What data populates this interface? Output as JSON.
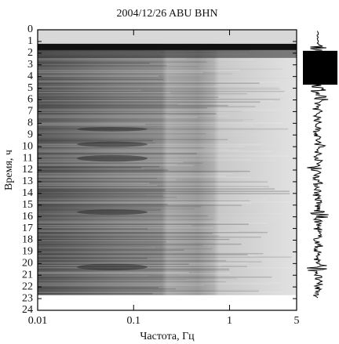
{
  "chart_data": {
    "type": "spectrogram",
    "title": "2004/12/26 ABU BHN",
    "x_label": "Частота, Гц",
    "y_label": "Время, ч",
    "xscale": "log",
    "xlim": [
      0.01,
      5
    ],
    "xticks": [
      0.01,
      0.1,
      1,
      5
    ],
    "ylim": [
      0,
      24
    ],
    "y_inverted": true,
    "yticks": [
      0,
      1,
      2,
      3,
      4,
      5,
      6,
      7,
      8,
      9,
      10,
      11,
      12,
      13,
      14,
      15,
      16,
      17,
      18,
      19,
      20,
      21,
      22,
      23,
      24
    ]
  }
}
